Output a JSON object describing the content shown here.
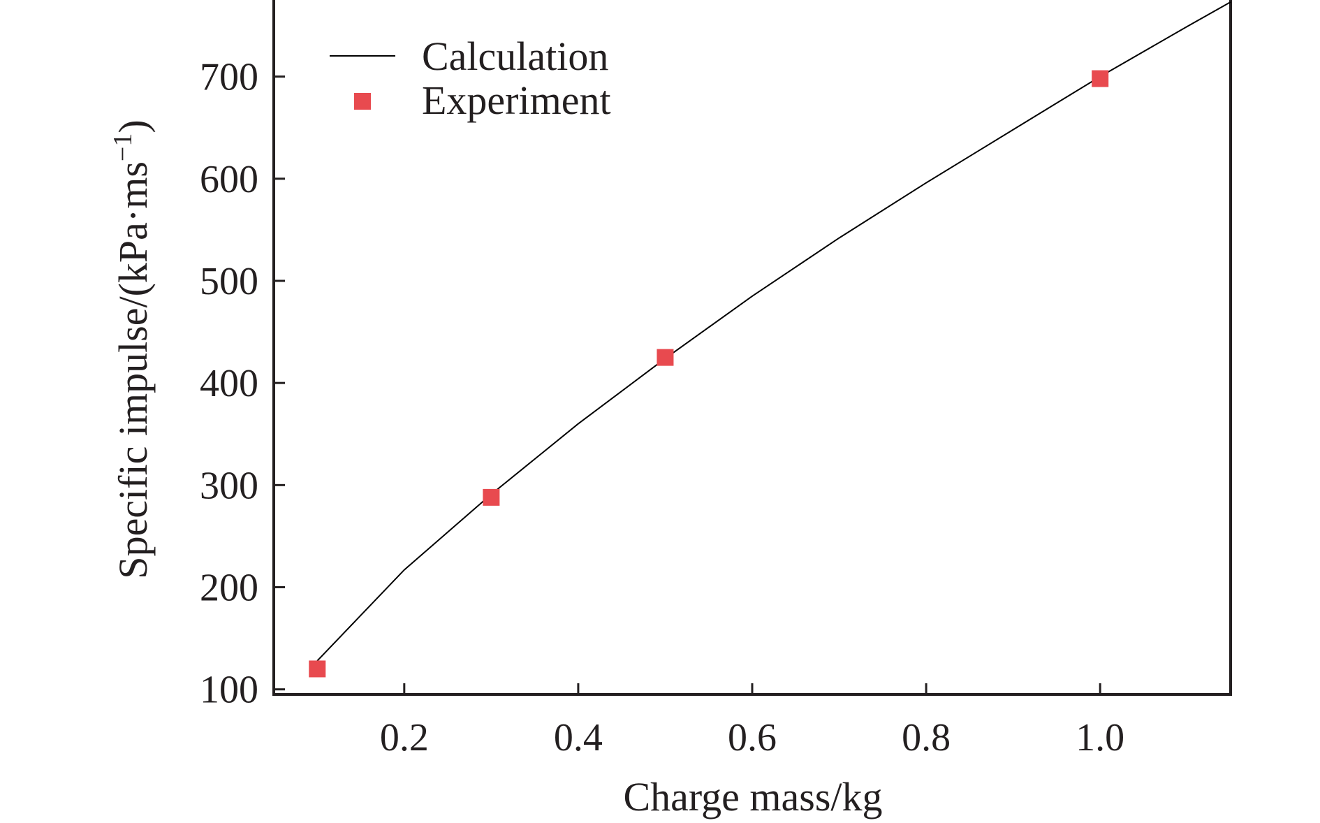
{
  "chart_data": {
    "type": "line",
    "xlabel": "Charge mass/kg",
    "ylabel": "Specific impulse/(kPa·ms",
    "ylabel_sup": "−1",
    "ylabel_close": ")",
    "xlim": [
      0.05,
      1.15
    ],
    "ylim": [
      95,
      775
    ],
    "xticks": [
      0.2,
      0.4,
      0.6,
      0.8,
      1.0
    ],
    "xtick_labels": [
      "0.2",
      "0.4",
      "0.6",
      "0.8",
      "1.0"
    ],
    "yticks": [
      100,
      200,
      300,
      400,
      500,
      600,
      700
    ],
    "ytick_labels": [
      "100",
      "200",
      "300",
      "400",
      "500",
      "600",
      "700"
    ],
    "legend_position": "top-left",
    "grid": false,
    "series": [
      {
        "name": "Calculation",
        "kind": "line",
        "color": "#000000",
        "x": [
          0.1,
          0.2,
          0.3,
          0.4,
          0.5,
          0.6,
          0.7,
          0.8,
          0.9,
          1.0,
          1.1,
          1.15
        ],
        "y": [
          128,
          217,
          291,
          360,
          424,
          485,
          542,
          596,
          648,
          700,
          749,
          773
        ]
      },
      {
        "name": "Experiment",
        "kind": "scatter",
        "marker": "square",
        "color": "#e84a4f",
        "x": [
          0.1,
          0.3,
          0.5,
          1.0
        ],
        "y": [
          120,
          288,
          425,
          698
        ]
      }
    ]
  }
}
